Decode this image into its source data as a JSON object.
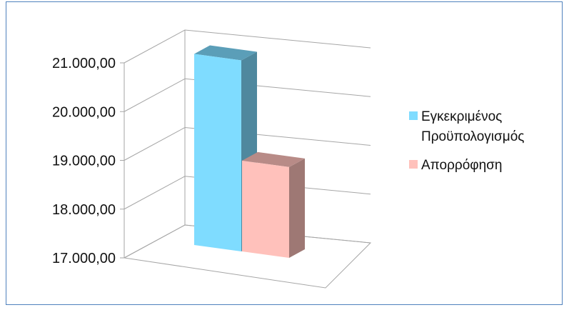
{
  "chart_data": {
    "type": "bar",
    "title": "",
    "xlabel": "",
    "ylabel": "",
    "ylim": [
      17000,
      21000
    ],
    "yticks": [
      17000,
      18000,
      19000,
      20000,
      21000
    ],
    "ytick_labels": [
      "17.000,00",
      "18.000,00",
      "19.000,00",
      "20.000,00",
      "21.000,00"
    ],
    "categories": [
      ""
    ],
    "series": [
      {
        "name": "Εγκεκριμένος Προϋπολογισμός",
        "values": [
          21000
        ],
        "color": "#7fdcff"
      },
      {
        "name": "Απορρόφηση",
        "values": [
          18900
        ],
        "color": "#ffc1bb"
      }
    ],
    "grid": true,
    "projection": "3d",
    "legend_position": "right"
  },
  "legend": {
    "items": [
      {
        "label": "Εγκεκριμένος Προϋπολογισμός",
        "color": "#7fdcff"
      },
      {
        "label": "Απορρόφηση",
        "color": "#ffc1bb"
      }
    ]
  }
}
